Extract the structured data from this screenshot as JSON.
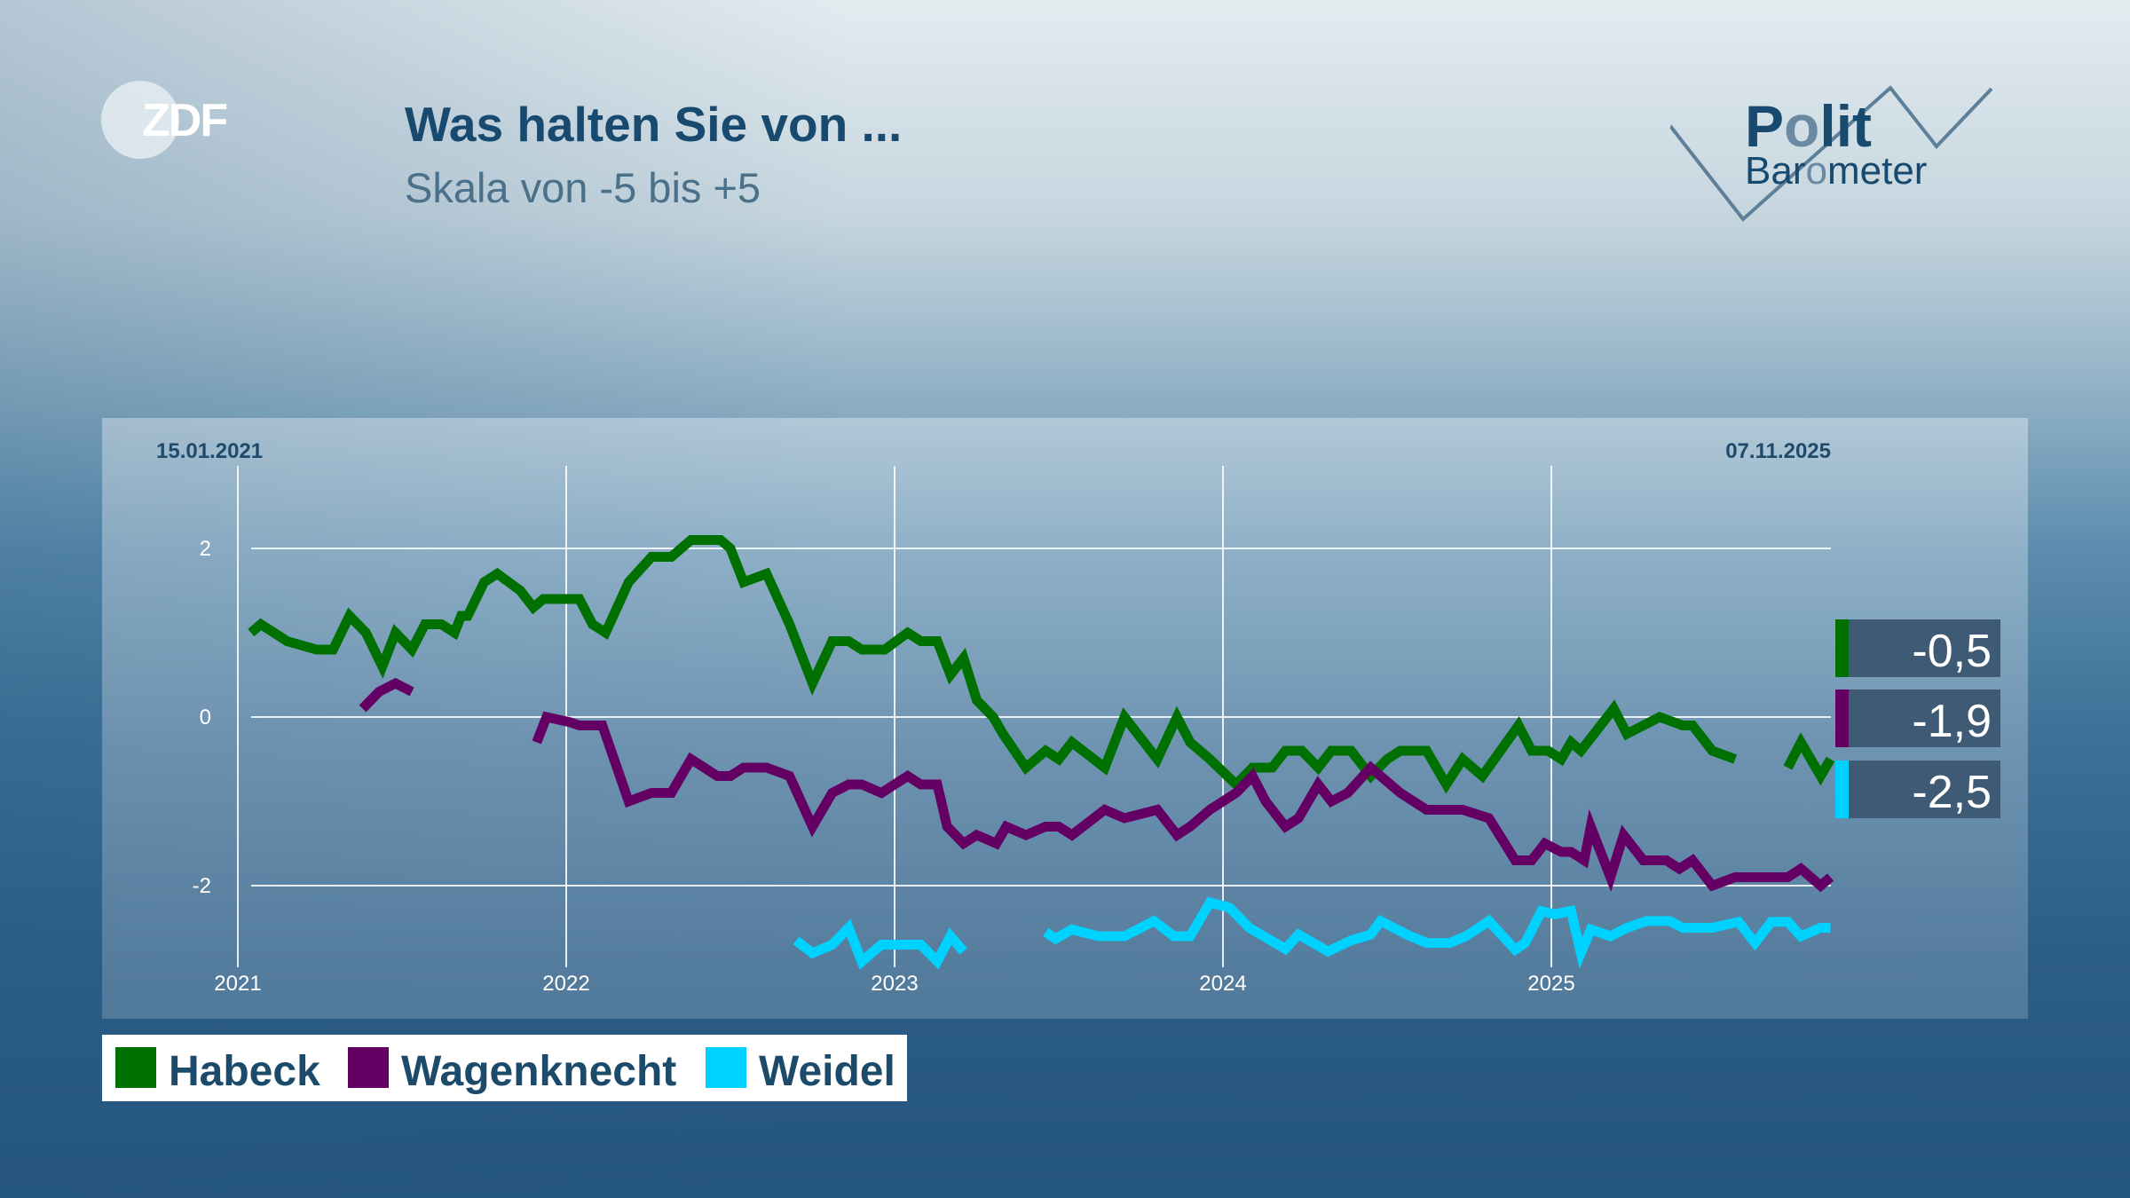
{
  "header": {
    "title": "Was halten Sie von ...",
    "subtitle": "Skala von -5 bis +5"
  },
  "logos": {
    "broadcaster": "ZDF",
    "program": "Polit Barometer",
    "program_line1": "Polit",
    "program_line2": "Barometer"
  },
  "chart_data": {
    "type": "line",
    "title": "Was halten Sie von ...",
    "subtitle": "Skala von -5 bis +5",
    "start_date_label": "15.01.2021",
    "end_date_label": "07.11.2025",
    "x_ticks": [
      "2021",
      "2022",
      "2023",
      "2024",
      "2025"
    ],
    "y_ticks": [
      "2",
      "0",
      "-2"
    ],
    "y_tick_values": [
      2,
      0,
      -2
    ],
    "xlim": [
      2021,
      2025.85
    ],
    "ylim": [
      -3,
      2.8
    ],
    "grid": true,
    "legend_position": "bottom-left",
    "series": [
      {
        "name": "Habeck",
        "color": "#007000",
        "last_value": "-0,5",
        "segments": [
          [
            [
              2021.04,
              1.0
            ],
            [
              2021.07,
              1.1
            ],
            [
              2021.15,
              0.9
            ],
            [
              2021.24,
              0.8
            ],
            [
              2021.29,
              0.8
            ],
            [
              2021.34,
              1.2
            ],
            [
              2021.39,
              1.0
            ],
            [
              2021.44,
              0.6
            ],
            [
              2021.48,
              1.0
            ],
            [
              2021.53,
              0.8
            ],
            [
              2021.57,
              1.1
            ],
            [
              2021.62,
              1.1
            ],
            [
              2021.66,
              1.0
            ],
            [
              2021.68,
              1.2
            ],
            [
              2021.7,
              1.2
            ],
            [
              2021.75,
              1.6
            ],
            [
              2021.79,
              1.7
            ],
            [
              2021.86,
              1.5
            ],
            [
              2021.9,
              1.3
            ],
            [
              2021.93,
              1.4
            ],
            [
              2022.04,
              1.4
            ],
            [
              2022.08,
              1.1
            ],
            [
              2022.12,
              1.0
            ],
            [
              2022.19,
              1.6
            ],
            [
              2022.26,
              1.9
            ],
            [
              2022.32,
              1.9
            ],
            [
              2022.38,
              2.1
            ],
            [
              2022.47,
              2.1
            ],
            [
              2022.5,
              2.0
            ],
            [
              2022.54,
              1.6
            ],
            [
              2022.61,
              1.7
            ],
            [
              2022.68,
              1.1
            ],
            [
              2022.75,
              0.4
            ],
            [
              2022.81,
              0.9
            ],
            [
              2022.86,
              0.9
            ],
            [
              2022.9,
              0.8
            ],
            [
              2022.97,
              0.8
            ],
            [
              2023.04,
              1.0
            ],
            [
              2023.08,
              0.9
            ],
            [
              2023.13,
              0.9
            ],
            [
              2023.17,
              0.5
            ],
            [
              2023.21,
              0.7
            ],
            [
              2023.25,
              0.2
            ],
            [
              2023.3,
              0.0
            ],
            [
              2023.33,
              -0.2
            ],
            [
              2023.4,
              -0.6
            ],
            [
              2023.46,
              -0.4
            ],
            [
              2023.5,
              -0.5
            ],
            [
              2023.54,
              -0.3
            ],
            [
              2023.64,
              -0.6
            ],
            [
              2023.7,
              0.0
            ],
            [
              2023.8,
              -0.5
            ],
            [
              2023.86,
              0.0
            ],
            [
              2023.9,
              -0.3
            ],
            [
              2023.96,
              -0.5
            ],
            [
              2024.04,
              -0.8
            ],
            [
              2024.09,
              -0.6
            ],
            [
              2024.15,
              -0.6
            ],
            [
              2024.19,
              -0.4
            ],
            [
              2024.24,
              -0.4
            ],
            [
              2024.29,
              -0.6
            ],
            [
              2024.33,
              -0.4
            ],
            [
              2024.39,
              -0.4
            ],
            [
              2024.45,
              -0.7
            ],
            [
              2024.5,
              -0.5
            ],
            [
              2024.54,
              -0.4
            ],
            [
              2024.62,
              -0.4
            ],
            [
              2024.68,
              -0.8
            ],
            [
              2024.73,
              -0.5
            ],
            [
              2024.79,
              -0.7
            ],
            [
              2024.9,
              -0.1
            ],
            [
              2024.94,
              -0.4
            ],
            [
              2024.99,
              -0.4
            ],
            [
              2025.03,
              -0.5
            ],
            [
              2025.06,
              -0.3
            ],
            [
              2025.09,
              -0.4
            ],
            [
              2025.19,
              0.1
            ],
            [
              2025.23,
              -0.2
            ],
            [
              2025.33,
              0.0
            ],
            [
              2025.4,
              -0.1
            ],
            [
              2025.43,
              -0.1
            ],
            [
              2025.49,
              -0.4
            ],
            [
              2025.56,
              -0.5
            ]
          ],
          [
            [
              2025.72,
              -0.6
            ],
            [
              2025.76,
              -0.3
            ],
            [
              2025.82,
              -0.7
            ],
            [
              2025.85,
              -0.5
            ]
          ]
        ]
      },
      {
        "name": "Wagenknecht",
        "color": "#640064",
        "last_value": "-1,9",
        "segments": [
          [
            [
              2021.38,
              0.1
            ],
            [
              2021.43,
              0.3
            ],
            [
              2021.48,
              0.4
            ],
            [
              2021.53,
              0.3
            ]
          ],
          [
            [
              2021.91,
              -0.3
            ],
            [
              2021.94,
              0.0
            ],
            [
              2022.01,
              -0.06
            ],
            [
              2022.04,
              -0.1
            ],
            [
              2022.11,
              -0.1
            ],
            [
              2022.19,
              -1.0
            ],
            [
              2022.26,
              -0.9
            ],
            [
              2022.32,
              -0.9
            ],
            [
              2022.38,
              -0.5
            ],
            [
              2022.46,
              -0.7
            ],
            [
              2022.5,
              -0.7
            ],
            [
              2022.54,
              -0.6
            ],
            [
              2022.61,
              -0.6
            ],
            [
              2022.68,
              -0.7
            ],
            [
              2022.75,
              -1.3
            ],
            [
              2022.81,
              -0.9
            ],
            [
              2022.86,
              -0.8
            ],
            [
              2022.9,
              -0.8
            ],
            [
              2022.96,
              -0.9
            ],
            [
              2023.04,
              -0.7
            ],
            [
              2023.08,
              -0.8
            ],
            [
              2023.13,
              -0.8
            ],
            [
              2023.16,
              -1.3
            ],
            [
              2023.21,
              -1.5
            ],
            [
              2023.25,
              -1.4
            ],
            [
              2023.31,
              -1.5
            ],
            [
              2023.34,
              -1.3
            ],
            [
              2023.4,
              -1.4
            ],
            [
              2023.46,
              -1.3
            ],
            [
              2023.5,
              -1.3
            ],
            [
              2023.54,
              -1.4
            ],
            [
              2023.64,
              -1.1
            ],
            [
              2023.7,
              -1.2
            ],
            [
              2023.8,
              -1.1
            ],
            [
              2023.86,
              -1.4
            ],
            [
              2023.9,
              -1.3
            ],
            [
              2023.96,
              -1.1
            ],
            [
              2024.04,
              -0.9
            ],
            [
              2024.09,
              -0.7
            ],
            [
              2024.13,
              -1.0
            ],
            [
              2024.19,
              -1.3
            ],
            [
              2024.23,
              -1.2
            ],
            [
              2024.29,
              -0.8
            ],
            [
              2024.33,
              -1.0
            ],
            [
              2024.38,
              -0.9
            ],
            [
              2024.45,
              -0.6
            ],
            [
              2024.48,
              -0.7
            ],
            [
              2024.54,
              -0.9
            ],
            [
              2024.62,
              -1.1
            ],
            [
              2024.73,
              -1.1
            ],
            [
              2024.81,
              -1.2
            ],
            [
              2024.89,
              -1.7
            ],
            [
              2024.94,
              -1.7
            ],
            [
              2024.98,
              -1.5
            ],
            [
              2025.03,
              -1.6
            ],
            [
              2025.06,
              -1.6
            ],
            [
              2025.1,
              -1.7
            ],
            [
              2025.12,
              -1.3
            ],
            [
              2025.18,
              -1.9
            ],
            [
              2025.22,
              -1.4
            ],
            [
              2025.28,
              -1.7
            ],
            [
              2025.35,
              -1.7
            ],
            [
              2025.39,
              -1.8
            ],
            [
              2025.43,
              -1.7
            ],
            [
              2025.49,
              -2.0
            ],
            [
              2025.56,
              -1.9
            ],
            [
              2025.72,
              -1.9
            ],
            [
              2025.76,
              -1.8
            ],
            [
              2025.82,
              -2.0
            ],
            [
              2025.85,
              -1.9
            ]
          ]
        ]
      },
      {
        "name": "Weidel",
        "color": "#00d2ff",
        "last_value": "-2,5",
        "segments": [
          [
            [
              2022.7,
              -2.65
            ],
            [
              2022.75,
              -2.8
            ],
            [
              2022.81,
              -2.7
            ],
            [
              2022.86,
              -2.5
            ],
            [
              2022.9,
              -2.9
            ],
            [
              2022.96,
              -2.7
            ],
            [
              2023.03,
              -2.7
            ],
            [
              2023.08,
              -2.7
            ],
            [
              2023.13,
              -2.9
            ],
            [
              2023.17,
              -2.6
            ],
            [
              2023.21,
              -2.78
            ]
          ],
          [
            [
              2023.46,
              -2.55
            ],
            [
              2023.49,
              -2.63
            ],
            [
              2023.54,
              -2.52
            ],
            [
              2023.62,
              -2.6
            ],
            [
              2023.7,
              -2.6
            ],
            [
              2023.79,
              -2.42
            ],
            [
              2023.85,
              -2.6
            ],
            [
              2023.9,
              -2.6
            ],
            [
              2023.96,
              -2.2
            ],
            [
              2024.02,
              -2.26
            ],
            [
              2024.08,
              -2.5
            ],
            [
              2024.19,
              -2.75
            ],
            [
              2024.23,
              -2.58
            ],
            [
              2024.32,
              -2.78
            ],
            [
              2024.39,
              -2.65
            ],
            [
              2024.45,
              -2.58
            ],
            [
              2024.48,
              -2.42
            ],
            [
              2024.56,
              -2.58
            ],
            [
              2024.62,
              -2.68
            ],
            [
              2024.69,
              -2.68
            ],
            [
              2024.74,
              -2.6
            ],
            [
              2024.81,
              -2.42
            ],
            [
              2024.89,
              -2.76
            ],
            [
              2024.92,
              -2.68
            ],
            [
              2024.97,
              -2.3
            ],
            [
              2025.01,
              -2.34
            ],
            [
              2025.06,
              -2.3
            ],
            [
              2025.09,
              -2.8
            ],
            [
              2025.12,
              -2.52
            ],
            [
              2025.18,
              -2.6
            ],
            [
              2025.23,
              -2.5
            ],
            [
              2025.29,
              -2.42
            ],
            [
              2025.36,
              -2.42
            ],
            [
              2025.4,
              -2.5
            ],
            [
              2025.49,
              -2.5
            ],
            [
              2025.57,
              -2.43
            ],
            [
              2025.62,
              -2.68
            ],
            [
              2025.67,
              -2.43
            ],
            [
              2025.72,
              -2.43
            ],
            [
              2025.76,
              -2.6
            ],
            [
              2025.82,
              -2.5
            ],
            [
              2025.85,
              -2.5
            ]
          ]
        ]
      }
    ]
  }
}
